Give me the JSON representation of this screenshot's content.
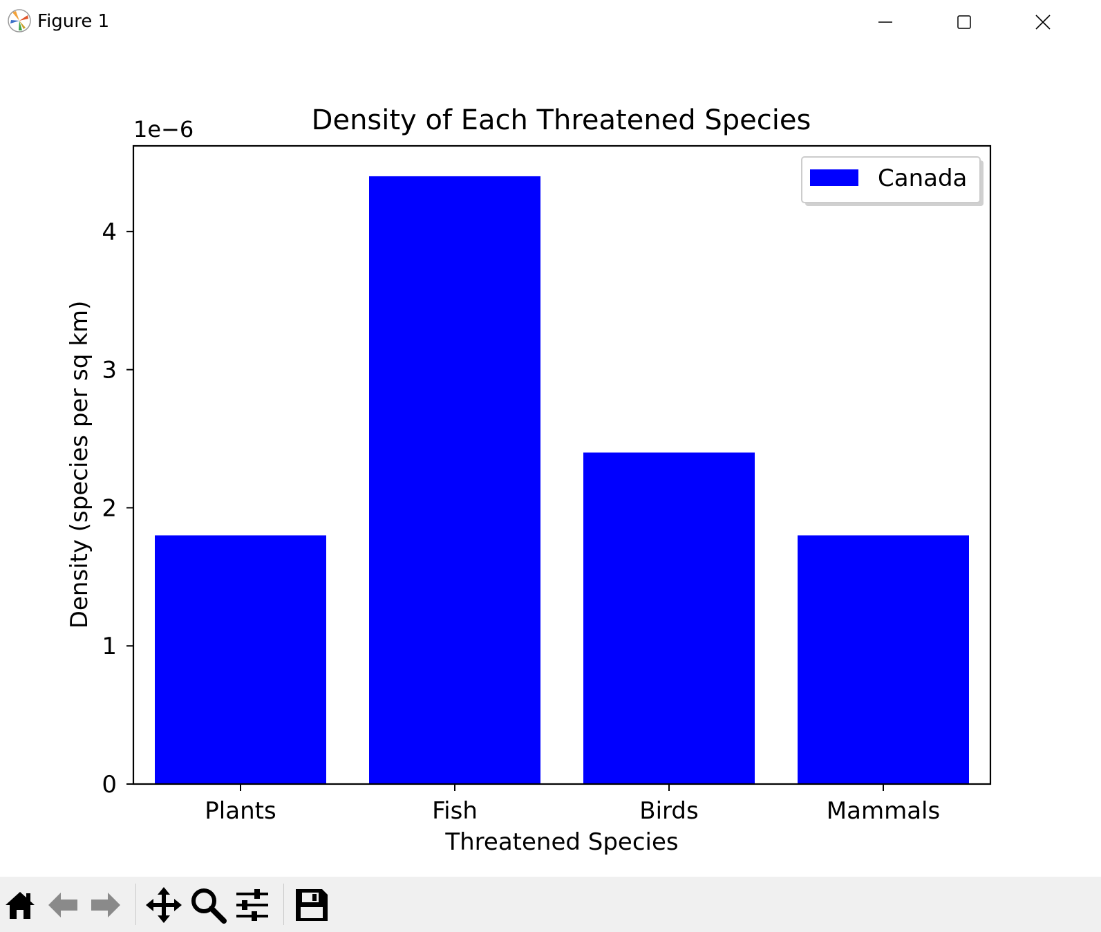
{
  "window": {
    "title": "Figure 1",
    "controls": [
      "minimize-icon",
      "maximize-icon",
      "close-icon"
    ]
  },
  "toolbar": {
    "tools": [
      "home-icon",
      "back-arrow-icon",
      "forward-arrow-icon",
      "pan-icon",
      "zoom-icon",
      "configure-subplots-icon",
      "save-icon"
    ]
  },
  "chart_data": {
    "type": "bar",
    "title": "Density of Each Threatened Species",
    "xlabel": "Threatened Species",
    "ylabel": "Density (species per sq km)",
    "offset_label": "1e−6",
    "categories": [
      "Plants",
      "Fish",
      "Birds",
      "Mammals"
    ],
    "series": [
      {
        "name": "Canada",
        "values": [
          1.8e-06,
          4.4e-06,
          2.4e-06,
          1.8e-06
        ],
        "color": "#0000ff"
      }
    ],
    "ylim": [
      0,
      4.62e-06
    ],
    "yticks": [
      0,
      1,
      2,
      3,
      4
    ],
    "ytick_scale": 1e-06,
    "grid": false,
    "legend_position": "upper right"
  }
}
